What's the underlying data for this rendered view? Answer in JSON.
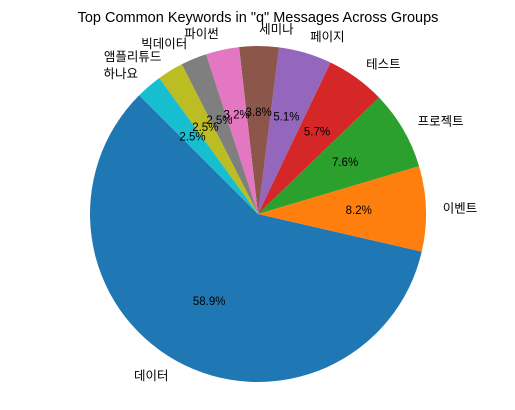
{
  "chart_data": {
    "type": "pie",
    "title": "Top Common Keywords in \"q\" Messages Across Groups",
    "start_angle_deg": 135,
    "direction": "counterclockwise",
    "slices": [
      {
        "label": "데이터",
        "percent": 58.9,
        "pct_text": "58.9%",
        "color": "#1f77b4"
      },
      {
        "label": "이벤트",
        "percent": 8.2,
        "pct_text": "8.2%",
        "color": "#ff7f0e"
      },
      {
        "label": "프로젝트",
        "percent": 7.6,
        "pct_text": "7.6%",
        "color": "#2ca02c"
      },
      {
        "label": "테스트",
        "percent": 5.7,
        "pct_text": "5.7%",
        "color": "#d62728"
      },
      {
        "label": "페이지",
        "percent": 5.1,
        "pct_text": "5.1%",
        "color": "#9467bd"
      },
      {
        "label": "세미나",
        "percent": 3.8,
        "pct_text": "3.8%",
        "color": "#8c564b"
      },
      {
        "label": "파이썬",
        "percent": 3.2,
        "pct_text": "3.2%",
        "color": "#e377c2"
      },
      {
        "label": "빅데이터",
        "percent": 2.5,
        "pct_text": "2.5%",
        "color": "#7f7f7f"
      },
      {
        "label": "앰플리튜드",
        "percent": 2.5,
        "pct_text": "2.5%",
        "color": "#bcbd22"
      },
      {
        "label": "하나요",
        "percent": 2.5,
        "pct_text": "2.5%",
        "color": "#17becf"
      }
    ]
  }
}
